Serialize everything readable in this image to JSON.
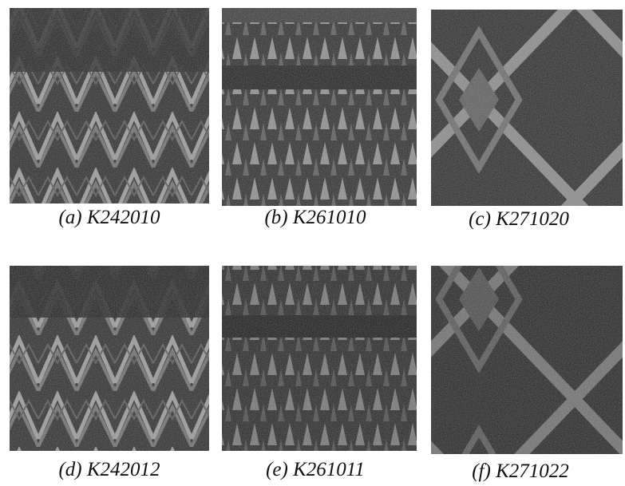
{
  "figure": {
    "panels": [
      {
        "caption": "(a) K242010"
      },
      {
        "caption": "(b) K261010"
      },
      {
        "caption": "(c) K271020"
      },
      {
        "caption": "(d) K242012"
      },
      {
        "caption": "(e) K261011"
      },
      {
        "caption": "(f) K271022"
      }
    ]
  }
}
